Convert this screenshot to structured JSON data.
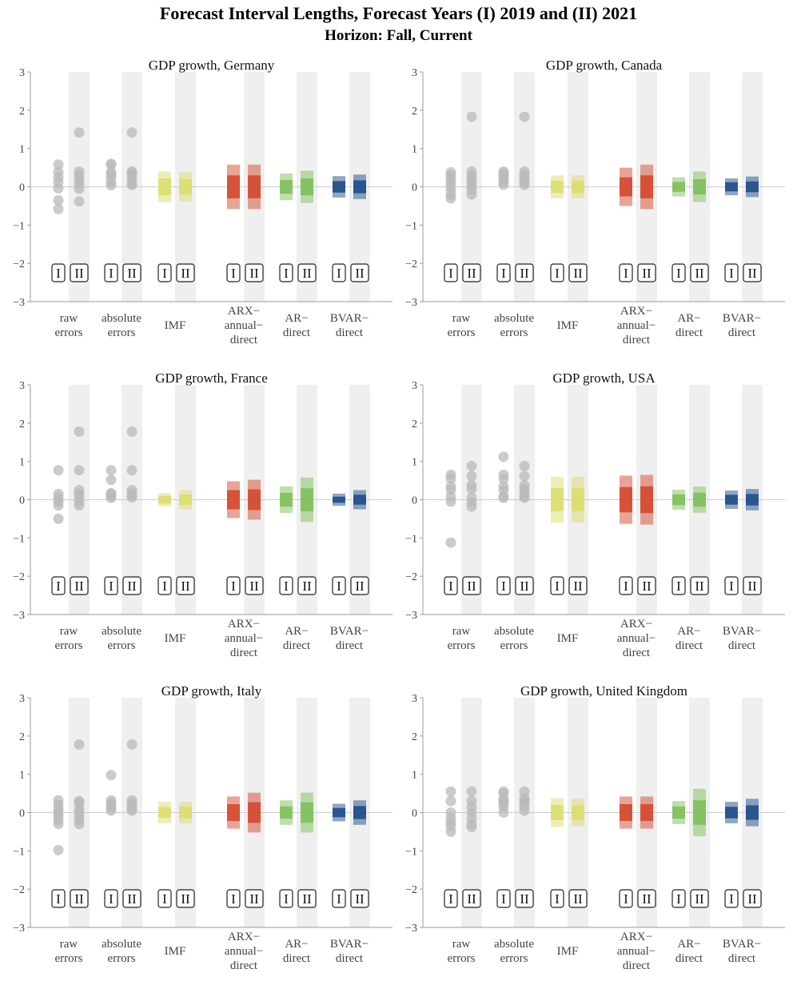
{
  "title": "Forecast Interval Lengths, Forecast Years (I) 2019 and (II) 2021",
  "subtitle": "Horizon: Fall, Current",
  "colors": {
    "band": "#efefef",
    "point": "#b9b9b9",
    "axis": "#999999",
    "IMF": "#dcdd6e",
    "ARX": "#d4492d",
    "AR": "#7fc05b",
    "BVAR": "#1f4e8a"
  },
  "chart_data": [
    {
      "type": "interval-dot",
      "title": "GDP growth, Germany",
      "ylim": [
        -3,
        3
      ],
      "yticks": [
        "3",
        "2",
        "1",
        "0",
        "−1",
        "−2",
        "−3"
      ],
      "categories": [
        "raw errors",
        "absolute errors",
        "IMF",
        "ARX−annual−direct",
        "AR−direct",
        "BVAR−direct"
      ],
      "year_labels": [
        "I",
        "II"
      ],
      "raw_errors": {
        "I": [
          0.58,
          0.38,
          0.25,
          0.12,
          -0.04,
          -0.35,
          -0.58
        ],
        "II": [
          1.42,
          0.4,
          0.3,
          0.18,
          0.08,
          -0.05,
          -0.38
        ]
      },
      "absolute_errors": {
        "I": [
          0.6,
          0.58,
          0.38,
          0.35,
          0.25,
          0.12,
          0.04
        ],
        "II": [
          1.42,
          0.4,
          0.38,
          0.3,
          0.18,
          0.08,
          0.05
        ]
      },
      "intervals": {
        "IMF": {
          "I": {
            "inner": [
              -0.22,
              0.22
            ],
            "outer": [
              -0.4,
              0.4
            ]
          },
          "II": {
            "inner": [
              -0.2,
              0.2
            ],
            "outer": [
              -0.38,
              0.38
            ]
          }
        },
        "ARX": {
          "I": {
            "inner": [
              -0.3,
              0.3
            ],
            "outer": [
              -0.58,
              0.58
            ]
          },
          "II": {
            "inner": [
              -0.3,
              0.3
            ],
            "outer": [
              -0.58,
              0.58
            ]
          }
        },
        "AR": {
          "I": {
            "inner": [
              -0.18,
              0.18
            ],
            "outer": [
              -0.35,
              0.35
            ]
          },
          "II": {
            "inner": [
              -0.22,
              0.22
            ],
            "outer": [
              -0.42,
              0.42
            ]
          }
        },
        "BVAR": {
          "I": {
            "inner": [
              -0.15,
              0.15
            ],
            "outer": [
              -0.28,
              0.28
            ]
          },
          "II": {
            "inner": [
              -0.17,
              0.17
            ],
            "outer": [
              -0.32,
              0.32
            ]
          }
        }
      }
    },
    {
      "type": "interval-dot",
      "title": "GDP growth, Canada",
      "ylim": [
        -3,
        3
      ],
      "yticks": [
        "3",
        "2",
        "1",
        "0",
        "−1",
        "−2",
        "−3"
      ],
      "categories": [
        "raw errors",
        "absolute errors",
        "IMF",
        "ARX−annual−direct",
        "AR−direct",
        "BVAR−direct"
      ],
      "year_labels": [
        "I",
        "II"
      ],
      "raw_errors": {
        "I": [
          0.38,
          0.3,
          0.22,
          0.12,
          0.02,
          -0.1,
          -0.22,
          -0.3
        ],
        "II": [
          1.83,
          0.4,
          0.3,
          0.2,
          0.12,
          0.02,
          -0.08,
          -0.2
        ]
      },
      "absolute_errors": {
        "I": [
          0.4,
          0.35,
          0.3,
          0.25,
          0.2,
          0.12,
          0.05
        ],
        "II": [
          1.83,
          0.4,
          0.32,
          0.25,
          0.18,
          0.1,
          0.05
        ]
      },
      "intervals": {
        "IMF": {
          "I": {
            "inner": [
              -0.16,
              0.16
            ],
            "outer": [
              -0.3,
              0.3
            ]
          },
          "II": {
            "inner": [
              -0.16,
              0.16
            ],
            "outer": [
              -0.3,
              0.3
            ]
          }
        },
        "ARX": {
          "I": {
            "inner": [
              -0.25,
              0.25
            ],
            "outer": [
              -0.5,
              0.5
            ]
          },
          "II": {
            "inner": [
              -0.3,
              0.3
            ],
            "outer": [
              -0.58,
              0.58
            ]
          }
        },
        "AR": {
          "I": {
            "inner": [
              -0.13,
              0.13
            ],
            "outer": [
              -0.25,
              0.25
            ]
          },
          "II": {
            "inner": [
              -0.2,
              0.2
            ],
            "outer": [
              -0.4,
              0.4
            ]
          }
        },
        "BVAR": {
          "I": {
            "inner": [
              -0.12,
              0.12
            ],
            "outer": [
              -0.22,
              0.22
            ]
          },
          "II": {
            "inner": [
              -0.14,
              0.14
            ],
            "outer": [
              -0.27,
              0.27
            ]
          }
        }
      }
    },
    {
      "type": "interval-dot",
      "title": "GDP growth, France",
      "ylim": [
        -3,
        3
      ],
      "yticks": [
        "3",
        "2",
        "1",
        "0",
        "−1",
        "−2",
        "−3"
      ],
      "categories": [
        "raw errors",
        "absolute errors",
        "IMF",
        "ARX−annual−direct",
        "AR−direct",
        "BVAR−direct"
      ],
      "year_labels": [
        "I",
        "II"
      ],
      "raw_errors": {
        "I": [
          0.77,
          0.15,
          0.05,
          -0.05,
          -0.15,
          -0.5
        ],
        "II": [
          1.78,
          0.77,
          0.25,
          0.15,
          0.08,
          -0.05,
          -0.15
        ]
      },
      "absolute_errors": {
        "I": [
          0.77,
          0.52,
          0.17,
          0.15,
          0.08,
          0.05
        ],
        "II": [
          1.78,
          0.77,
          0.25,
          0.17,
          0.1,
          0.06
        ]
      },
      "intervals": {
        "IMF": {
          "I": {
            "inner": [
              -0.1,
              0.1
            ],
            "outer": [
              -0.17,
              0.17
            ]
          },
          "II": {
            "inner": [
              -0.13,
              0.13
            ],
            "outer": [
              -0.25,
              0.25
            ]
          }
        },
        "ARX": {
          "I": {
            "inner": [
              -0.25,
              0.25
            ],
            "outer": [
              -0.48,
              0.48
            ]
          },
          "II": {
            "inner": [
              -0.27,
              0.27
            ],
            "outer": [
              -0.52,
              0.52
            ]
          }
        },
        "AR": {
          "I": {
            "inner": [
              -0.18,
              0.18
            ],
            "outer": [
              -0.35,
              0.35
            ]
          },
          "II": {
            "inner": [
              -0.3,
              0.3
            ],
            "outer": [
              -0.58,
              0.58
            ]
          }
        },
        "BVAR": {
          "I": {
            "inner": [
              -0.08,
              0.08
            ],
            "outer": [
              -0.16,
              0.16
            ]
          },
          "II": {
            "inner": [
              -0.13,
              0.13
            ],
            "outer": [
              -0.25,
              0.25
            ]
          }
        }
      }
    },
    {
      "type": "interval-dot",
      "title": "GDP growth, USA",
      "ylim": [
        -3,
        3
      ],
      "yticks": [
        "3",
        "2",
        "1",
        "0",
        "−1",
        "−2",
        "−3"
      ],
      "categories": [
        "raw errors",
        "absolute errors",
        "IMF",
        "ARX−annual−direct",
        "AR−direct",
        "BVAR−direct"
      ],
      "year_labels": [
        "I",
        "II"
      ],
      "raw_errors": {
        "I": [
          0.65,
          0.55,
          0.35,
          0.25,
          0.08,
          -0.05,
          -1.12
        ],
        "II": [
          0.88,
          0.62,
          0.38,
          0.28,
          0.05,
          -0.08,
          -0.18
        ]
      },
      "absolute_errors": {
        "I": [
          1.12,
          0.65,
          0.55,
          0.35,
          0.25,
          0.08,
          0.05
        ],
        "II": [
          0.88,
          0.62,
          0.38,
          0.28,
          0.18,
          0.08,
          0.05
        ]
      },
      "intervals": {
        "IMF": {
          "I": {
            "inner": [
              -0.3,
              0.3
            ],
            "outer": [
              -0.6,
              0.6
            ]
          },
          "II": {
            "inner": [
              -0.3,
              0.3
            ],
            "outer": [
              -0.6,
              0.6
            ]
          }
        },
        "ARX": {
          "I": {
            "inner": [
              -0.33,
              0.33
            ],
            "outer": [
              -0.63,
              0.63
            ]
          },
          "II": {
            "inner": [
              -0.35,
              0.35
            ],
            "outer": [
              -0.65,
              0.65
            ]
          }
        },
        "AR": {
          "I": {
            "inner": [
              -0.14,
              0.14
            ],
            "outer": [
              -0.26,
              0.26
            ]
          },
          "II": {
            "inner": [
              -0.18,
              0.18
            ],
            "outer": [
              -0.34,
              0.34
            ]
          }
        },
        "BVAR": {
          "I": {
            "inner": [
              -0.13,
              0.13
            ],
            "outer": [
              -0.24,
              0.24
            ]
          },
          "II": {
            "inner": [
              -0.15,
              0.15
            ],
            "outer": [
              -0.28,
              0.28
            ]
          }
        }
      }
    },
    {
      "type": "interval-dot",
      "title": "GDP growth, Italy",
      "ylim": [
        -3,
        3
      ],
      "yticks": [
        "3",
        "2",
        "1",
        "0",
        "−1",
        "−2",
        "−3"
      ],
      "categories": [
        "raw errors",
        "absolute errors",
        "IMF",
        "ARX−annual−direct",
        "AR−direct",
        "BVAR−direct"
      ],
      "year_labels": [
        "I",
        "II"
      ],
      "raw_errors": {
        "I": [
          0.32,
          0.2,
          0.1,
          0.0,
          -0.1,
          -0.2,
          -0.3,
          -0.98
        ],
        "II": [
          1.78,
          0.3,
          0.25,
          0.1,
          0.0,
          -0.1,
          -0.2,
          -0.3
        ]
      },
      "absolute_errors": {
        "I": [
          0.98,
          0.32,
          0.25,
          0.2,
          0.12,
          0.05
        ],
        "II": [
          1.78,
          0.32,
          0.25,
          0.2,
          0.1,
          0.05
        ]
      },
      "intervals": {
        "IMF": {
          "I": {
            "inner": [
              -0.14,
              0.14
            ],
            "outer": [
              -0.28,
              0.28
            ]
          },
          "II": {
            "inner": [
              -0.15,
              0.15
            ],
            "outer": [
              -0.28,
              0.28
            ]
          }
        },
        "ARX": {
          "I": {
            "inner": [
              -0.22,
              0.22
            ],
            "outer": [
              -0.42,
              0.42
            ]
          },
          "II": {
            "inner": [
              -0.27,
              0.27
            ],
            "outer": [
              -0.52,
              0.52
            ]
          }
        },
        "AR": {
          "I": {
            "inner": [
              -0.16,
              0.16
            ],
            "outer": [
              -0.32,
              0.32
            ]
          },
          "II": {
            "inner": [
              -0.27,
              0.27
            ],
            "outer": [
              -0.52,
              0.52
            ]
          }
        },
        "BVAR": {
          "I": {
            "inner": [
              -0.12,
              0.12
            ],
            "outer": [
              -0.23,
              0.23
            ]
          },
          "II": {
            "inner": [
              -0.17,
              0.17
            ],
            "outer": [
              -0.32,
              0.32
            ]
          }
        }
      }
    },
    {
      "type": "interval-dot",
      "title": "GDP growth, United Kingdom",
      "ylim": [
        -3,
        3
      ],
      "yticks": [
        "3",
        "2",
        "1",
        "0",
        "−1",
        "−2",
        "−3"
      ],
      "categories": [
        "raw errors",
        "absolute errors",
        "IMF",
        "ARX−annual−direct",
        "AR−direct",
        "BVAR−direct"
      ],
      "year_labels": [
        "I",
        "II"
      ],
      "raw_errors": {
        "I": [
          0.55,
          0.3,
          0.0,
          -0.15,
          -0.25,
          -0.35,
          -0.5
        ],
        "II": [
          0.55,
          0.3,
          0.15,
          0.0,
          -0.15,
          -0.3,
          -0.38
        ]
      },
      "absolute_errors": {
        "I": [
          0.55,
          0.5,
          0.35,
          0.3,
          0.25,
          0.15,
          0.0
        ],
        "II": [
          0.55,
          0.38,
          0.3,
          0.28,
          0.15,
          0.05
        ]
      },
      "intervals": {
        "IMF": {
          "I": {
            "inner": [
              -0.2,
              0.2
            ],
            "outer": [
              -0.38,
              0.38
            ]
          },
          "II": {
            "inner": [
              -0.19,
              0.19
            ],
            "outer": [
              -0.36,
              0.36
            ]
          }
        },
        "ARX": {
          "I": {
            "inner": [
              -0.22,
              0.22
            ],
            "outer": [
              -0.42,
              0.42
            ]
          },
          "II": {
            "inner": [
              -0.22,
              0.22
            ],
            "outer": [
              -0.42,
              0.42
            ]
          }
        },
        "AR": {
          "I": {
            "inner": [
              -0.16,
              0.16
            ],
            "outer": [
              -0.3,
              0.3
            ]
          },
          "II": {
            "inner": [
              -0.32,
              0.32
            ],
            "outer": [
              -0.62,
              0.62
            ]
          }
        },
        "BVAR": {
          "I": {
            "inner": [
              -0.15,
              0.15
            ],
            "outer": [
              -0.28,
              0.28
            ]
          },
          "II": {
            "inner": [
              -0.19,
              0.19
            ],
            "outer": [
              -0.36,
              0.36
            ]
          }
        }
      }
    }
  ]
}
